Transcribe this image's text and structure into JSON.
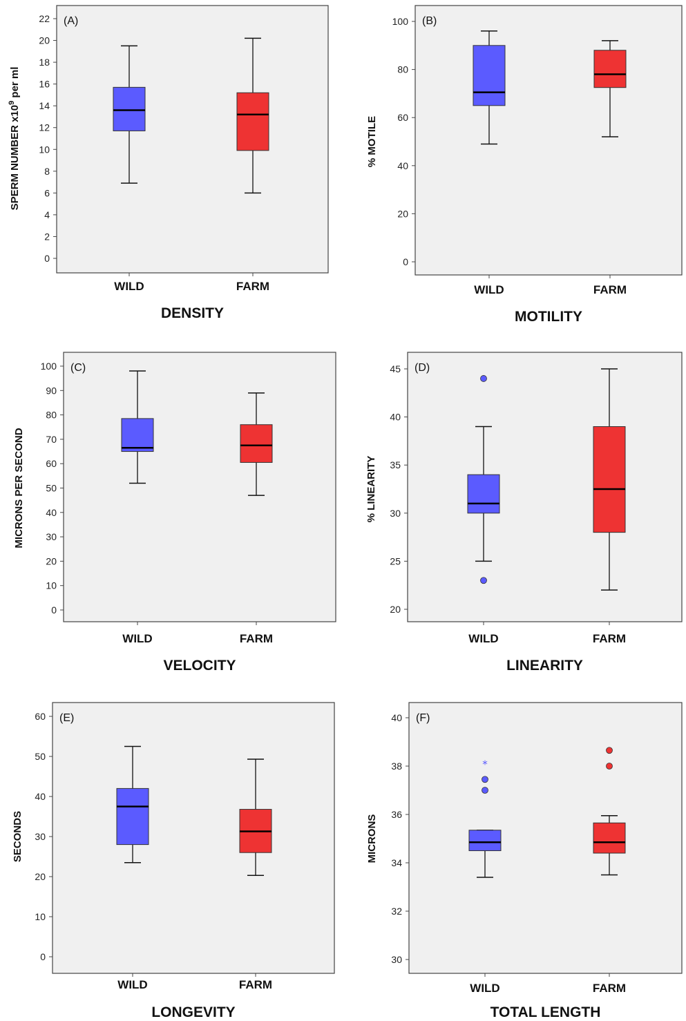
{
  "chart_data": [
    {
      "type": "box",
      "panel": "(A)",
      "title": "DENSITY",
      "ylabel": "SPERM NUMBER x10^9 per ml",
      "ylabel_base": "SPERM NUMBER x10",
      "ylabel_sup": "9",
      "ylabel_tail": " per ml",
      "ylim": [
        0,
        22
      ],
      "yticks": [
        "0",
        "2",
        "4",
        "6",
        "8",
        "10",
        "12",
        "14",
        "16",
        "18",
        "20",
        "22"
      ],
      "categories": [
        "WILD",
        "FARM"
      ],
      "colors": [
        "#5b5bff",
        "#ee3333"
      ],
      "boxes": [
        {
          "min": 6.9,
          "q1": 11.7,
          "median": 13.6,
          "q3": 15.7,
          "max": 19.5,
          "outliers": []
        },
        {
          "min": 6.0,
          "q1": 9.9,
          "median": 13.2,
          "q3": 15.2,
          "max": 20.2,
          "outliers": []
        }
      ]
    },
    {
      "type": "box",
      "panel": "(B)",
      "title": "MOTILITY",
      "ylabel": "% MOTILE",
      "ylim": [
        0,
        100
      ],
      "yticks": [
        "0",
        "20",
        "40",
        "60",
        "80",
        "100"
      ],
      "categories": [
        "WILD",
        "FARM"
      ],
      "colors": [
        "#5b5bff",
        "#ee3333"
      ],
      "boxes": [
        {
          "min": 49,
          "q1": 65,
          "median": 70.5,
          "q3": 90,
          "max": 96,
          "outliers": []
        },
        {
          "min": 52,
          "q1": 72.5,
          "median": 78,
          "q3": 88,
          "max": 92,
          "outliers": []
        }
      ]
    },
    {
      "type": "box",
      "panel": "(C)",
      "title": "VELOCITY",
      "ylabel": "MICRONS PER SECOND",
      "ylim": [
        0,
        100
      ],
      "yticks": [
        "0",
        "10",
        "20",
        "30",
        "40",
        "50",
        "60",
        "70",
        "80",
        "90",
        "100"
      ],
      "categories": [
        "WILD",
        "FARM"
      ],
      "colors": [
        "#5b5bff",
        "#ee3333"
      ],
      "boxes": [
        {
          "min": 52,
          "q1": 65,
          "median": 66.5,
          "q3": 78.5,
          "max": 98,
          "outliers": []
        },
        {
          "min": 47,
          "q1": 60.5,
          "median": 67.5,
          "q3": 76,
          "max": 89,
          "outliers": []
        }
      ]
    },
    {
      "type": "box",
      "panel": "(D)",
      "title": "LINEARITY",
      "ylabel": "% LINEARITY",
      "ylim": [
        20,
        45
      ],
      "yticks": [
        "20",
        "25",
        "30",
        "35",
        "40",
        "45"
      ],
      "categories": [
        "WILD",
        "FARM"
      ],
      "colors": [
        "#5b5bff",
        "#ee3333"
      ],
      "boxes": [
        {
          "min": 25,
          "q1": 30,
          "median": 31,
          "q3": 34,
          "max": 39,
          "outliers": [
            44,
            23
          ]
        },
        {
          "min": 22,
          "q1": 28,
          "median": 32.5,
          "q3": 39,
          "max": 45,
          "outliers": []
        }
      ]
    },
    {
      "type": "box",
      "panel": "(E)",
      "title": "LONGEVITY",
      "ylabel": "SECONDS",
      "ylim": [
        0,
        60
      ],
      "yticks": [
        "0",
        "10",
        "20",
        "30",
        "40",
        "50",
        "60"
      ],
      "categories": [
        "WILD",
        "FARM"
      ],
      "colors": [
        "#5b5bff",
        "#ee3333"
      ],
      "boxes": [
        {
          "min": 23.5,
          "q1": 28,
          "median": 37.5,
          "q3": 42,
          "max": 52.5,
          "outliers": []
        },
        {
          "min": 20.3,
          "q1": 26,
          "median": 31.3,
          "q3": 36.8,
          "max": 49.3,
          "outliers": []
        }
      ]
    },
    {
      "type": "box",
      "panel": "(F)",
      "title": "TOTAL LENGTH",
      "ylabel": "MICRONS",
      "ylim": [
        30,
        40
      ],
      "yticks": [
        "30",
        "32",
        "34",
        "36",
        "38",
        "40"
      ],
      "categories": [
        "WILD",
        "FARM"
      ],
      "colors": [
        "#5b5bff",
        "#ee3333"
      ],
      "boxes": [
        {
          "min": 33.4,
          "q1": 34.5,
          "median": 34.85,
          "q3": 35.35,
          "max": 35.35,
          "outliers": [
            37.0,
            37.45
          ],
          "extremes": [
            38.1
          ]
        },
        {
          "min": 33.5,
          "q1": 34.4,
          "median": 34.85,
          "q3": 35.65,
          "max": 35.95,
          "outliers": [
            38.0,
            38.65
          ]
        }
      ]
    }
  ]
}
